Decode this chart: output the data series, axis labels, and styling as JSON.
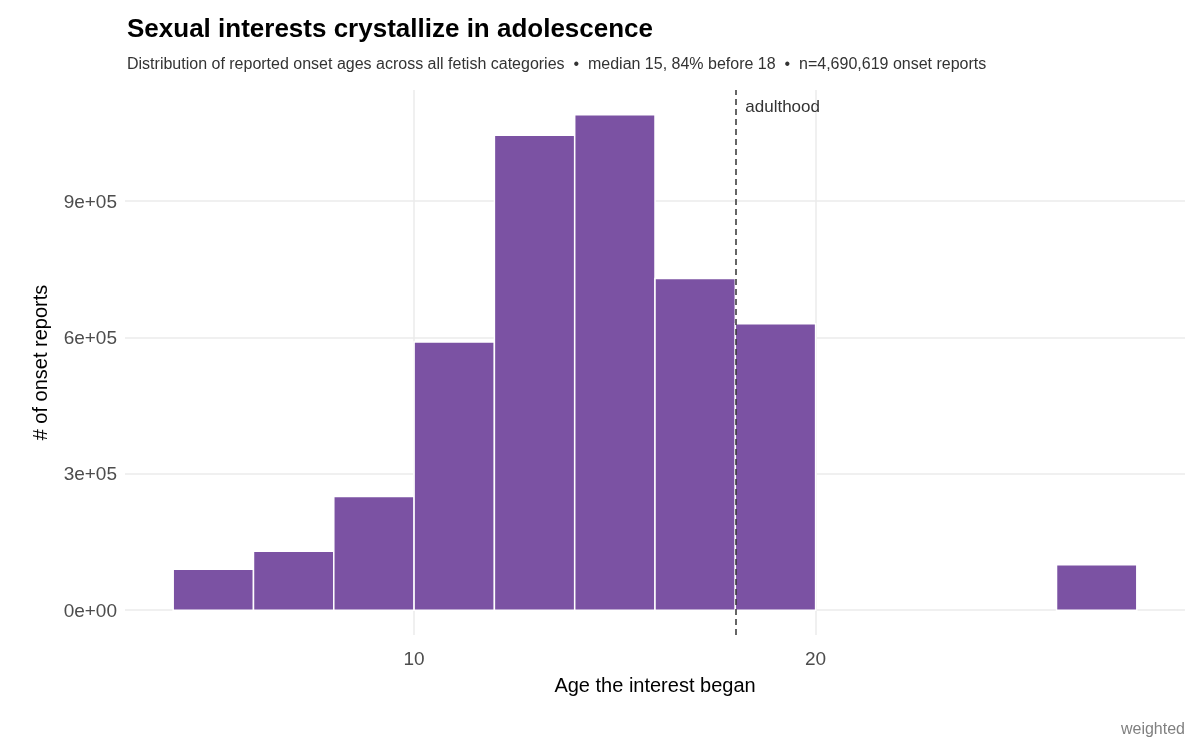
{
  "chart_data": {
    "type": "histogram",
    "title": "Sexual interests crystallize in adolescence",
    "subtitle": "Distribution of reported onset ages across all fetish categories  •  median 15, 84% before 18  •  n=4,690,619 onset reports",
    "xlabel": "Age the interest began",
    "ylabel": "# of onset reports",
    "bins": [
      4,
      6,
      8,
      10,
      12,
      14,
      16,
      18,
      20,
      22,
      24,
      26,
      28
    ],
    "values": [
      90000,
      130000,
      250000,
      590000,
      1045000,
      1090000,
      730000,
      630000,
      0,
      0,
      0,
      100000
    ],
    "color": "#7b52a3",
    "xlim": [
      2.8,
      29.2
    ],
    "xticks": [
      10,
      20
    ],
    "ylim": [
      -54500,
      1144500
    ],
    "yticks": [
      {
        "value": 0,
        "label": "0e+00"
      },
      {
        "value": 300000,
        "label": "3e+05"
      },
      {
        "value": 600000,
        "label": "6e+05"
      },
      {
        "value": 900000,
        "label": "9e+05"
      }
    ],
    "grid": true,
    "ref_lines": [
      {
        "axis": "x",
        "value": 18,
        "label": "adulthood",
        "color": "#333333",
        "line_style": "dashed"
      }
    ],
    "annotations": [
      "weighted"
    ]
  }
}
